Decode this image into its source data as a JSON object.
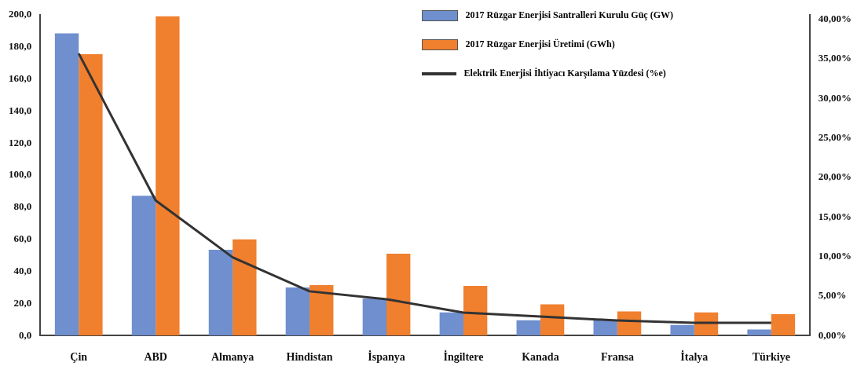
{
  "chart_data": {
    "type": "bar",
    "categories": [
      "Çin",
      "ABD",
      "Almanya",
      "Hindistan",
      "İspanya",
      "İngiltere",
      "Kanada",
      "Fransa",
      "İtalya",
      "Türkiye"
    ],
    "series": [
      {
        "name": "2017 Rüzgar Enerjisi Santralleri Kurulu Güç (GW)",
        "color": "#6f8fce",
        "values": [
          188.4,
          87.2,
          53.5,
          30,
          23,
          14.4,
          9.5,
          9.5,
          6.6,
          3.8
        ]
      },
      {
        "name": "2017 Rüzgar Enerjisi Üretimi (GWh)",
        "color": "#f07f2e",
        "values": [
          175.4,
          199,
          60,
          31.5,
          51,
          31,
          19.5,
          15,
          14.4,
          13.3
        ]
      },
      {
        "name": "Elektrik Enerjisi İhtiyacı Karşılama Yüzdesi (%e)",
        "type": "line",
        "axis": "y2",
        "color": "#333333",
        "values": [
          35.7,
          17.1,
          9.9,
          5.6,
          4.6,
          2.9,
          2.4,
          1.9,
          1.6,
          1.6
        ]
      }
    ],
    "ylim": [
      0,
      200
    ],
    "yticks": [
      {
        "value": 0,
        "label": "0,0"
      },
      {
        "value": 20,
        "label": "20,0"
      },
      {
        "value": 40,
        "label": "40,0"
      },
      {
        "value": 60,
        "label": "60,0"
      },
      {
        "value": 80,
        "label": "80,0"
      },
      {
        "value": 100,
        "label": "100,0"
      },
      {
        "value": 120,
        "label": "120,0"
      },
      {
        "value": 140,
        "label": "140,0"
      },
      {
        "value": 160,
        "label": "160,0"
      },
      {
        "value": 180,
        "label": "180,0"
      },
      {
        "value": 200,
        "label": "200,0"
      }
    ],
    "y2lim": [
      0,
      40.6
    ],
    "y2ticks": [
      {
        "value": 0,
        "label": "0,00%"
      },
      {
        "value": 5,
        "label": "5,00%"
      },
      {
        "value": 10,
        "label": "10,00%"
      },
      {
        "value": 15,
        "label": "15,00%"
      },
      {
        "value": 20,
        "label": "20,00%"
      },
      {
        "value": 25,
        "label": "25,00%"
      },
      {
        "value": 30,
        "label": "30,00%"
      },
      {
        "value": 35,
        "label": "35,00%"
      },
      {
        "value": 40,
        "label": "40,00%"
      }
    ],
    "grid": false,
    "legend": "top right",
    "marker": "none"
  }
}
